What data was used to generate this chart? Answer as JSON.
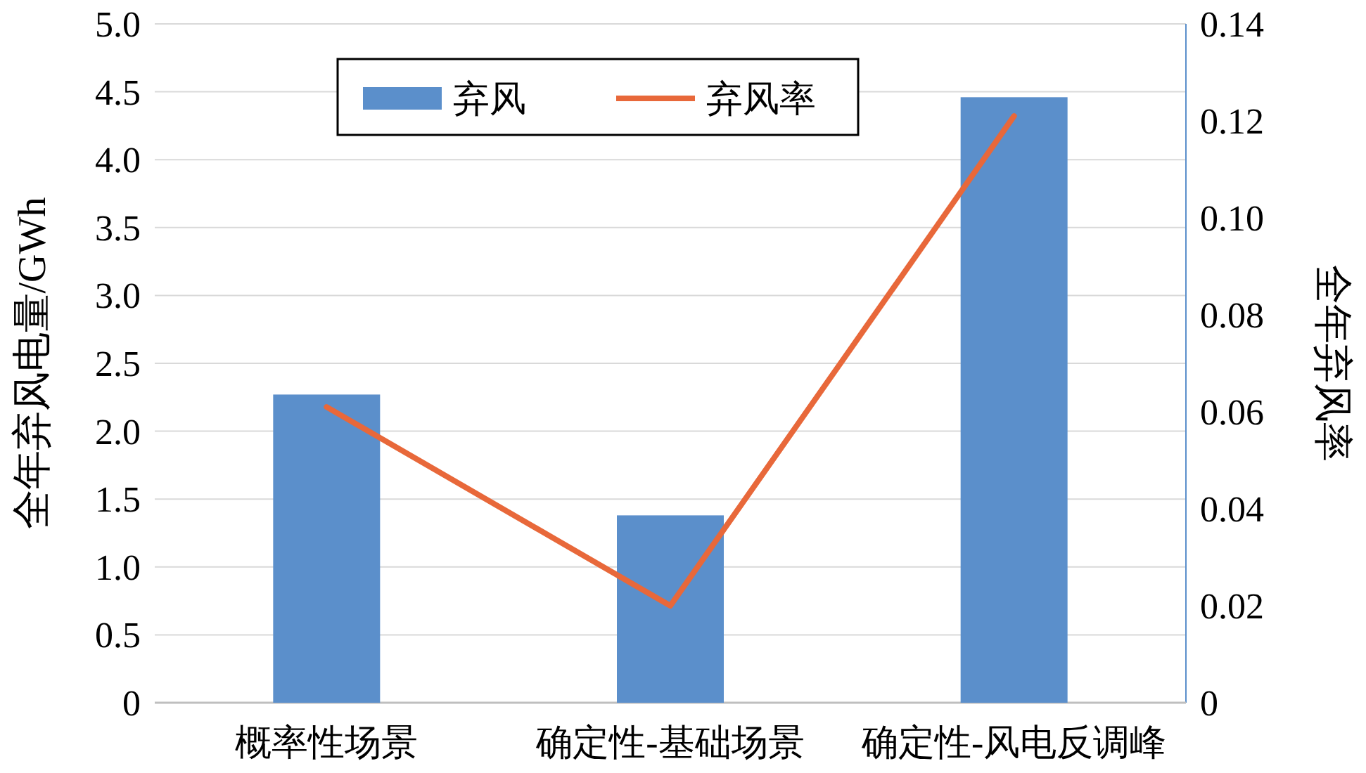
{
  "chart_data": {
    "type": "bar",
    "categories": [
      "概率性场景",
      "确定性-基础场景",
      "确定性-风电反调峰"
    ],
    "ylabel": "全年弃风电量/GWh",
    "y2label": "全年弃风率",
    "series": [
      {
        "name": "弃风",
        "color": "#5b8fcb",
        "values": [
          2.27,
          1.38,
          4.46
        ]
      },
      {
        "name": "弃风率",
        "type": "line",
        "axis": "y2",
        "color": "#e8683a",
        "values": [
          0.061,
          0.02,
          0.121
        ]
      }
    ],
    "ylim": [
      0,
      5
    ],
    "yticks": [
      0,
      {
        "value": 0.5,
        "label": "0.5"
      },
      {
        "value": 1,
        "label": "1.0"
      },
      {
        "value": 1.5,
        "label": "1.5"
      },
      {
        "value": 2,
        "label": "2.0"
      },
      {
        "value": 2.5,
        "label": "2.5"
      },
      {
        "value": 3,
        "label": "3.0"
      },
      {
        "value": 3.5,
        "label": "3.5"
      },
      {
        "value": 4,
        "label": "4.0"
      },
      {
        "value": 4.5,
        "label": "4.5"
      },
      {
        "value": 5,
        "label": "5.0"
      }
    ],
    "y2lim": [
      0,
      0.14
    ],
    "y2ticks": [
      0,
      0.02,
      0.04,
      0.06,
      0.08,
      {
        "value": 0.1,
        "label": "0.10"
      },
      0.12,
      0.14
    ],
    "grid": "y",
    "legend": "top"
  }
}
